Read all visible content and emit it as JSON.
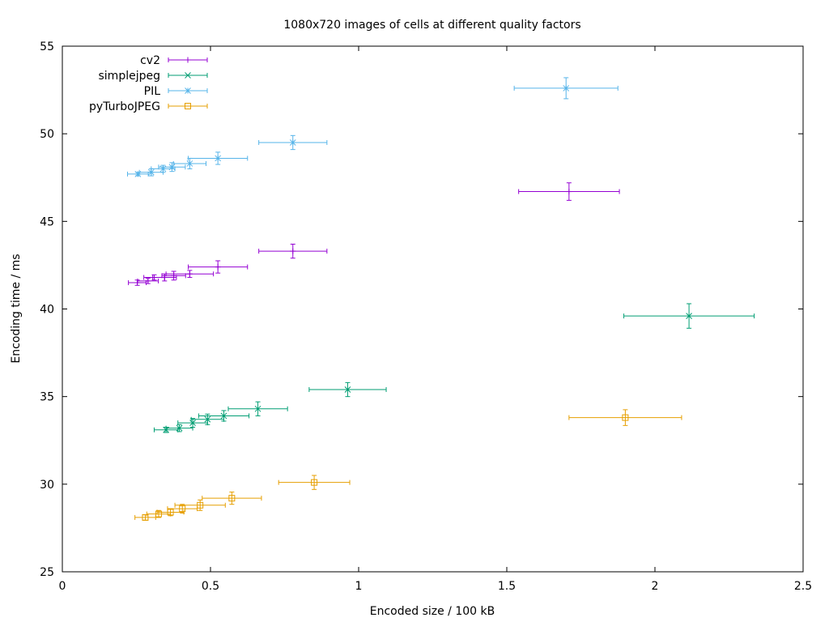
{
  "chart_data": {
    "type": "scatter",
    "title": "1080x720 images of cells at different quality factors",
    "xlabel": "Encoded size / 100 kB",
    "ylabel": "Encoding time / ms",
    "xlim": [
      0,
      2.5
    ],
    "ylim": [
      25,
      55
    ],
    "x_ticks": [
      0,
      0.5,
      1,
      1.5,
      2,
      2.5
    ],
    "x_tick_labels": [
      "0",
      "0.5",
      "1",
      "1.5",
      "2",
      "2.5"
    ],
    "y_ticks": [
      25,
      30,
      35,
      40,
      45,
      50,
      55
    ],
    "y_tick_labels": [
      "25",
      "30",
      "35",
      "40",
      "45",
      "50",
      "55"
    ],
    "legend_position": "top-left",
    "grid": false,
    "series": [
      {
        "name": "cv2",
        "color": "#9400d3",
        "marker": "plus",
        "points": [
          {
            "x": 0.253,
            "y": 41.5,
            "xerr": 0.03,
            "yerr": 0.15
          },
          {
            "x": 0.289,
            "y": 41.6,
            "xerr": 0.035,
            "yerr": 0.15
          },
          {
            "x": 0.31,
            "y": 41.8,
            "xerr": 0.035,
            "yerr": 0.15
          },
          {
            "x": 0.345,
            "y": 41.8,
            "xerr": 0.04,
            "yerr": 0.2
          },
          {
            "x": 0.376,
            "y": 41.9,
            "xerr": 0.04,
            "yerr": 0.25
          },
          {
            "x": 0.43,
            "y": 42.0,
            "xerr": 0.08,
            "yerr": 0.2
          },
          {
            "x": 0.525,
            "y": 42.4,
            "xerr": 0.1,
            "yerr": 0.35
          },
          {
            "x": 0.778,
            "y": 43.3,
            "xerr": 0.115,
            "yerr": 0.4
          },
          {
            "x": 1.71,
            "y": 46.7,
            "xerr": 0.17,
            "yerr": 0.5
          }
        ]
      },
      {
        "name": "simplejpeg",
        "color": "#009e73",
        "marker": "cross",
        "points": [
          {
            "x": 0.35,
            "y": 33.1,
            "xerr": 0.04,
            "yerr": 0.15
          },
          {
            "x": 0.395,
            "y": 33.2,
            "xerr": 0.045,
            "yerr": 0.2
          },
          {
            "x": 0.44,
            "y": 33.5,
            "xerr": 0.05,
            "yerr": 0.25
          },
          {
            "x": 0.49,
            "y": 33.7,
            "xerr": 0.055,
            "yerr": 0.3
          },
          {
            "x": 0.545,
            "y": 33.9,
            "xerr": 0.085,
            "yerr": 0.3
          },
          {
            "x": 0.66,
            "y": 34.3,
            "xerr": 0.1,
            "yerr": 0.4
          },
          {
            "x": 0.963,
            "y": 35.4,
            "xerr": 0.13,
            "yerr": 0.4
          },
          {
            "x": 2.115,
            "y": 39.6,
            "xerr": 0.22,
            "yerr": 0.7
          }
        ]
      },
      {
        "name": "PIL",
        "color": "#56b4e9",
        "marker": "star",
        "points": [
          {
            "x": 0.255,
            "y": 47.7,
            "xerr": 0.035,
            "yerr": 0.1
          },
          {
            "x": 0.3,
            "y": 47.8,
            "xerr": 0.04,
            "yerr": 0.2
          },
          {
            "x": 0.34,
            "y": 48.0,
            "xerr": 0.04,
            "yerr": 0.2
          },
          {
            "x": 0.37,
            "y": 48.1,
            "xerr": 0.045,
            "yerr": 0.25
          },
          {
            "x": 0.43,
            "y": 48.3,
            "xerr": 0.055,
            "yerr": 0.3
          },
          {
            "x": 0.525,
            "y": 48.6,
            "xerr": 0.1,
            "yerr": 0.35
          },
          {
            "x": 0.778,
            "y": 49.5,
            "xerr": 0.115,
            "yerr": 0.4
          },
          {
            "x": 1.7,
            "y": 52.6,
            "xerr": 0.175,
            "yerr": 0.6
          }
        ]
      },
      {
        "name": "pyTurboJPEG",
        "color": "#e69f00",
        "marker": "square",
        "points": [
          {
            "x": 0.28,
            "y": 28.1,
            "xerr": 0.035,
            "yerr": 0.15
          },
          {
            "x": 0.325,
            "y": 28.3,
            "xerr": 0.04,
            "yerr": 0.2
          },
          {
            "x": 0.365,
            "y": 28.4,
            "xerr": 0.045,
            "yerr": 0.2
          },
          {
            "x": 0.405,
            "y": 28.6,
            "xerr": 0.05,
            "yerr": 0.25
          },
          {
            "x": 0.465,
            "y": 28.8,
            "xerr": 0.085,
            "yerr": 0.3
          },
          {
            "x": 0.572,
            "y": 29.2,
            "xerr": 0.1,
            "yerr": 0.35
          },
          {
            "x": 0.85,
            "y": 30.1,
            "xerr": 0.12,
            "yerr": 0.4
          },
          {
            "x": 1.9,
            "y": 33.8,
            "xerr": 0.19,
            "yerr": 0.45
          }
        ]
      }
    ]
  }
}
